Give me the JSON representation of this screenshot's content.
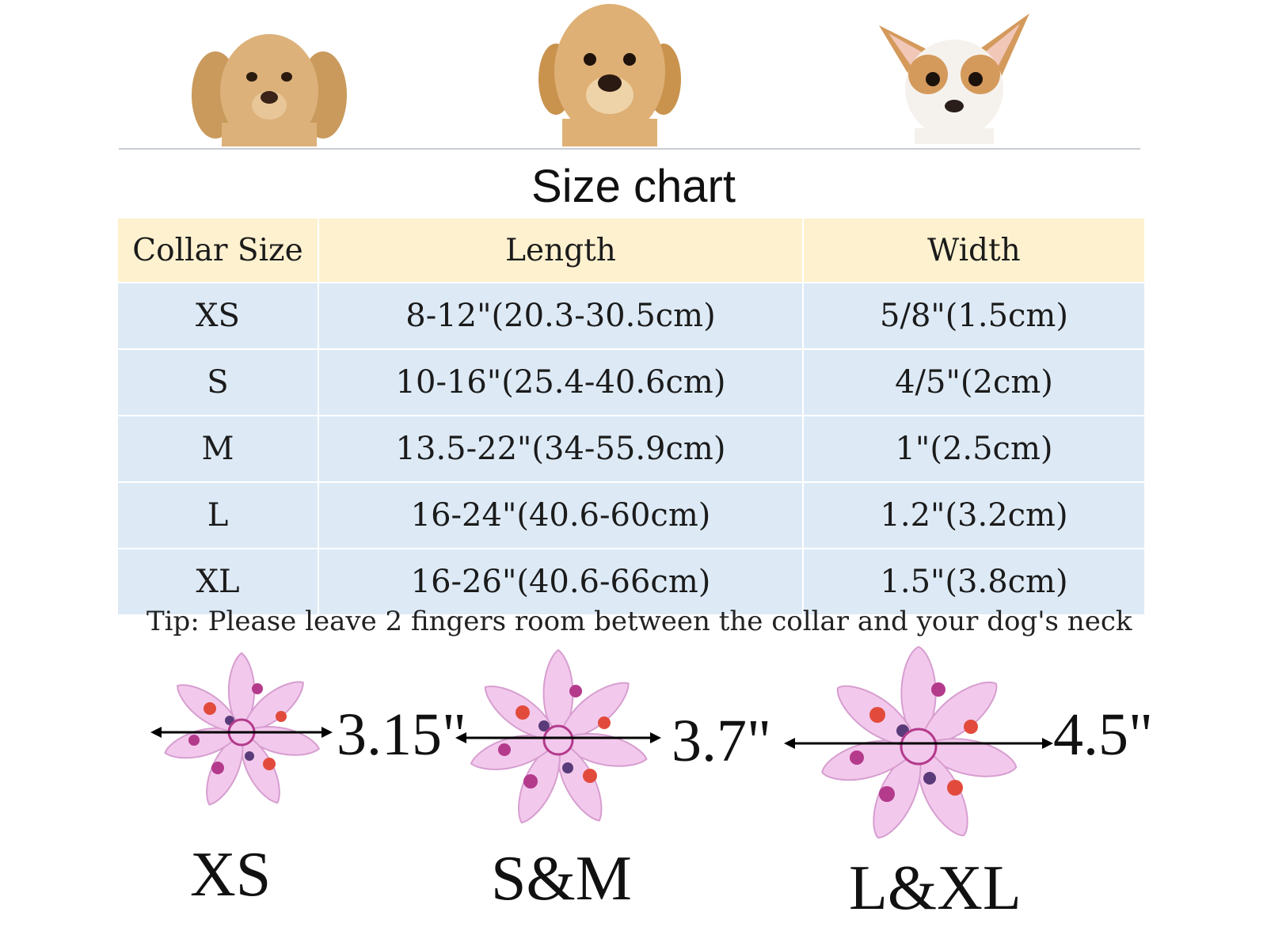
{
  "title": "Size chart",
  "table": {
    "headers": [
      "Collar Size",
      "Length",
      "Width"
    ],
    "rows": [
      [
        "XS",
        "8-12\"(20.3-30.5cm)",
        "5/8\"(1.5cm)"
      ],
      [
        "S",
        "10-16\"(25.4-40.6cm)",
        "4/5\"(2cm)"
      ],
      [
        "M",
        "13.5-22\"(34-55.9cm)",
        "1\"(2.5cm)"
      ],
      [
        "L",
        "16-24\"(40.6-60cm)",
        "1.2\"(3.2cm)"
      ],
      [
        "XL",
        "16-26\"(40.6-66cm)",
        "1.5\"(3.8cm)"
      ]
    ]
  },
  "tip": "Tip: Please leave 2 fingers room between the collar and your dog's neck",
  "flowers": [
    {
      "measure": "3.15\"",
      "label": "XS"
    },
    {
      "measure": "3.7\"",
      "label": "S&M"
    },
    {
      "measure": "4.5\"",
      "label": "L&XL"
    }
  ],
  "colors": {
    "header_bg": "#fdf1cf",
    "row_bg": "#ddeaf6",
    "petal": "#f2c9ec",
    "petal_accent": "#e24b3c"
  }
}
